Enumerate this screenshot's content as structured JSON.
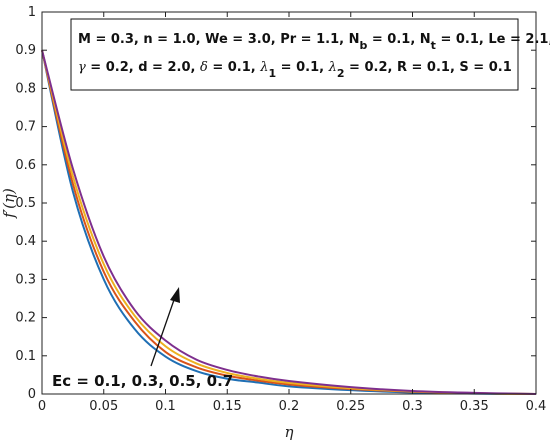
{
  "chart_data": {
    "type": "line",
    "title": "",
    "xlabel": "η",
    "ylabel": "f′(η)",
    "xlim": [
      0,
      0.4
    ],
    "ylim": [
      0,
      1
    ],
    "xticks": [
      "0",
      "0.05",
      "0.1",
      "0.15",
      "0.2",
      "0.25",
      "0.3",
      "0.35",
      "0.4"
    ],
    "yticks": [
      "0",
      "0.1",
      "0.2",
      "0.3",
      "0.4",
      "0.5",
      "0.6",
      "0.7",
      "0.8",
      "0.9",
      "1"
    ],
    "grid": false,
    "params_box": {
      "line1": "M = 0.3, n = 1.0, We = 3.0, Pr = 1.1, N_b = 0.1, N_t = 0.1,  Le = 2.1,",
      "line2": "γ = 0.2, d = 2.0, δ = 0.1, λ_1 = 0.1, λ_2 = 0.2, R = 0.1, S = 0.1"
    },
    "annotation": "Ec = 0.1, 0.3, 0.5, 0.7",
    "x": [
      0,
      0.025,
      0.05,
      0.075,
      0.1,
      0.125,
      0.15,
      0.175,
      0.2,
      0.25,
      0.3,
      0.35,
      0.4
    ],
    "series": [
      {
        "color": "#1f6fb4",
        "values": [
          0.9,
          0.53,
          0.3,
          0.17,
          0.098,
          0.06,
          0.04,
          0.03,
          0.02,
          0.01,
          0.004,
          0.001,
          0
        ]
      },
      {
        "color": "#d95319",
        "values": [
          0.9,
          0.55,
          0.32,
          0.19,
          0.11,
          0.07,
          0.048,
          0.035,
          0.025,
          0.013,
          0.006,
          0.002,
          0
        ]
      },
      {
        "color": "#edb120",
        "values": [
          0.9,
          0.57,
          0.34,
          0.205,
          0.125,
          0.08,
          0.055,
          0.04,
          0.029,
          0.015,
          0.007,
          0.002,
          0
        ]
      },
      {
        "color": "#7e2f8e",
        "values": [
          0.9,
          0.59,
          0.36,
          0.22,
          0.14,
          0.09,
          0.063,
          0.046,
          0.034,
          0.018,
          0.008,
          0.003,
          0
        ]
      }
    ]
  }
}
